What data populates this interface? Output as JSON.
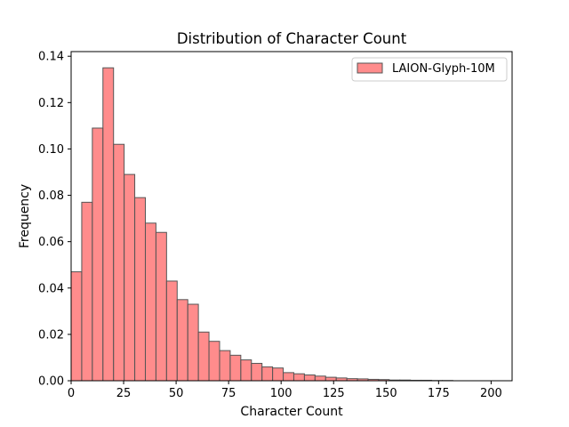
{
  "chart_data": {
    "type": "bar",
    "title": "Distribution of Character Count",
    "xlabel": "Character Count",
    "ylabel": "Frequency",
    "xlim": [
      0,
      210
    ],
    "ylim": [
      0,
      0.142
    ],
    "xticks": [
      0,
      25,
      50,
      75,
      100,
      125,
      150,
      175,
      200
    ],
    "xtick_labels": [
      "0",
      "25",
      "50",
      "75",
      "100",
      "125",
      "150",
      "175",
      "200"
    ],
    "yticks": [
      0.0,
      0.02,
      0.04,
      0.06,
      0.08,
      0.1,
      0.12,
      0.14
    ],
    "ytick_labels": [
      "0.00",
      "0.02",
      "0.04",
      "0.06",
      "0.08",
      "0.10",
      "0.12",
      "0.14"
    ],
    "grid": false,
    "legend_position": "top-right",
    "bin_width": 5.05,
    "bin_start": 0,
    "series": [
      {
        "name": "LAION-Glyph-10M",
        "color": "#ff6666",
        "edge_color": "#555555",
        "values": [
          0.047,
          0.077,
          0.109,
          0.135,
          0.102,
          0.089,
          0.079,
          0.068,
          0.064,
          0.043,
          0.035,
          0.033,
          0.021,
          0.017,
          0.013,
          0.011,
          0.009,
          0.0075,
          0.006,
          0.0055,
          0.0035,
          0.003,
          0.0025,
          0.002,
          0.0015,
          0.0012,
          0.0009,
          0.0008,
          0.0006,
          0.0005,
          0.0003,
          0.0003,
          0.0002,
          0.0002,
          0.0001,
          0.0001
        ]
      }
    ]
  }
}
